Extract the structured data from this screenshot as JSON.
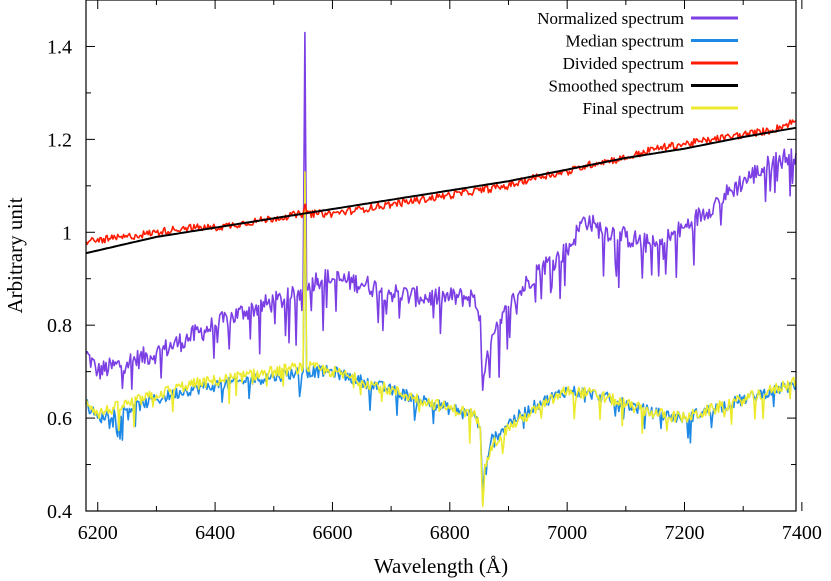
{
  "chart_data": {
    "type": "line",
    "title": "",
    "xlabel": "Wavelength (Å)",
    "ylabel": "Arbitrary unit",
    "xlim": [
      6180,
      7390
    ],
    "ylim": [
      0.4,
      1.5
    ],
    "xticks": [
      6200,
      6400,
      6600,
      6800,
      7000,
      7200,
      7400
    ],
    "xtick_labels": [
      "6200",
      "6400",
      "6600",
      "6800",
      "7000",
      "7200",
      "7400"
    ],
    "yticks": [
      0.4,
      0.6,
      0.8,
      1.0,
      1.2,
      1.4
    ],
    "ytick_labels": [
      "0.4",
      "0.6",
      "0.8",
      "1",
      "1.2",
      "1.4"
    ],
    "legend_position": "top-right",
    "series": [
      {
        "name": "Normalized spectrum",
        "color": "#7b3fe4",
        "x": [
          6180,
          6200,
          6250,
          6300,
          6350,
          6400,
          6450,
          6500,
          6530,
          6545,
          6550,
          6553,
          6556,
          6560,
          6575,
          6600,
          6650,
          6700,
          6750,
          6800,
          6840,
          6852,
          6856,
          6860,
          6870,
          6900,
          6950,
          7000,
          7030,
          7050,
          7100,
          7150,
          7200,
          7250,
          7300,
          7350,
          7390
        ],
        "values": [
          0.74,
          0.7,
          0.72,
          0.74,
          0.77,
          0.8,
          0.83,
          0.85,
          0.86,
          0.87,
          0.88,
          1.43,
          0.88,
          0.89,
          0.9,
          0.9,
          0.89,
          0.87,
          0.86,
          0.86,
          0.86,
          0.82,
          0.66,
          0.7,
          0.76,
          0.84,
          0.92,
          0.96,
          1.03,
          1.01,
          0.99,
          0.97,
          1.01,
          1.06,
          1.11,
          1.15,
          1.17
        ]
      },
      {
        "name": "Median spectrum",
        "color": "#1e88e5",
        "x": [
          6180,
          6200,
          6250,
          6300,
          6350,
          6400,
          6450,
          6500,
          6550,
          6553,
          6556,
          6600,
          6650,
          6700,
          6750,
          6800,
          6840,
          6852,
          6856,
          6860,
          6870,
          6900,
          6950,
          7000,
          7050,
          7100,
          7150,
          7200,
          7250,
          7300,
          7350,
          7390
        ],
        "values": [
          0.63,
          0.6,
          0.62,
          0.64,
          0.66,
          0.67,
          0.68,
          0.69,
          0.7,
          1.12,
          0.7,
          0.7,
          0.68,
          0.66,
          0.64,
          0.62,
          0.61,
          0.58,
          0.42,
          0.5,
          0.55,
          0.59,
          0.63,
          0.66,
          0.65,
          0.63,
          0.61,
          0.6,
          0.62,
          0.64,
          0.66,
          0.67
        ]
      },
      {
        "name": "Divided spectrum",
        "color": "#ff1a00",
        "x": [
          6180,
          6250,
          6300,
          6350,
          6400,
          6450,
          6500,
          6550,
          6553,
          6556,
          6600,
          6650,
          6700,
          6750,
          6800,
          6850,
          6900,
          6950,
          7000,
          7050,
          7100,
          7150,
          7200,
          7250,
          7300,
          7350,
          7390
        ],
        "values": [
          0.98,
          0.99,
          1.0,
          1.01,
          1.01,
          1.02,
          1.03,
          1.04,
          1.06,
          1.04,
          1.04,
          1.05,
          1.06,
          1.07,
          1.08,
          1.09,
          1.1,
          1.12,
          1.13,
          1.15,
          1.16,
          1.18,
          1.19,
          1.2,
          1.21,
          1.22,
          1.24
        ]
      },
      {
        "name": "Smoothed spectrum",
        "color": "#000000",
        "x": [
          6180,
          6300,
          6400,
          6500,
          6600,
          6700,
          6800,
          6900,
          7000,
          7100,
          7200,
          7300,
          7390
        ],
        "values": [
          0.955,
          0.99,
          1.01,
          1.03,
          1.05,
          1.07,
          1.09,
          1.11,
          1.135,
          1.16,
          1.18,
          1.205,
          1.225
        ]
      },
      {
        "name": "Final spectrum",
        "color": "#ecea2e",
        "x": [
          6180,
          6200,
          6250,
          6300,
          6350,
          6400,
          6450,
          6500,
          6550,
          6553,
          6556,
          6600,
          6650,
          6700,
          6750,
          6800,
          6840,
          6852,
          6856,
          6860,
          6870,
          6900,
          6950,
          7000,
          7050,
          7100,
          7150,
          7200,
          7250,
          7300,
          7350,
          7390
        ],
        "values": [
          0.64,
          0.61,
          0.63,
          0.65,
          0.67,
          0.68,
          0.69,
          0.7,
          0.71,
          1.13,
          0.71,
          0.7,
          0.68,
          0.66,
          0.64,
          0.62,
          0.61,
          0.58,
          0.41,
          0.5,
          0.54,
          0.58,
          0.62,
          0.66,
          0.65,
          0.63,
          0.61,
          0.6,
          0.62,
          0.64,
          0.66,
          0.68
        ]
      }
    ]
  }
}
